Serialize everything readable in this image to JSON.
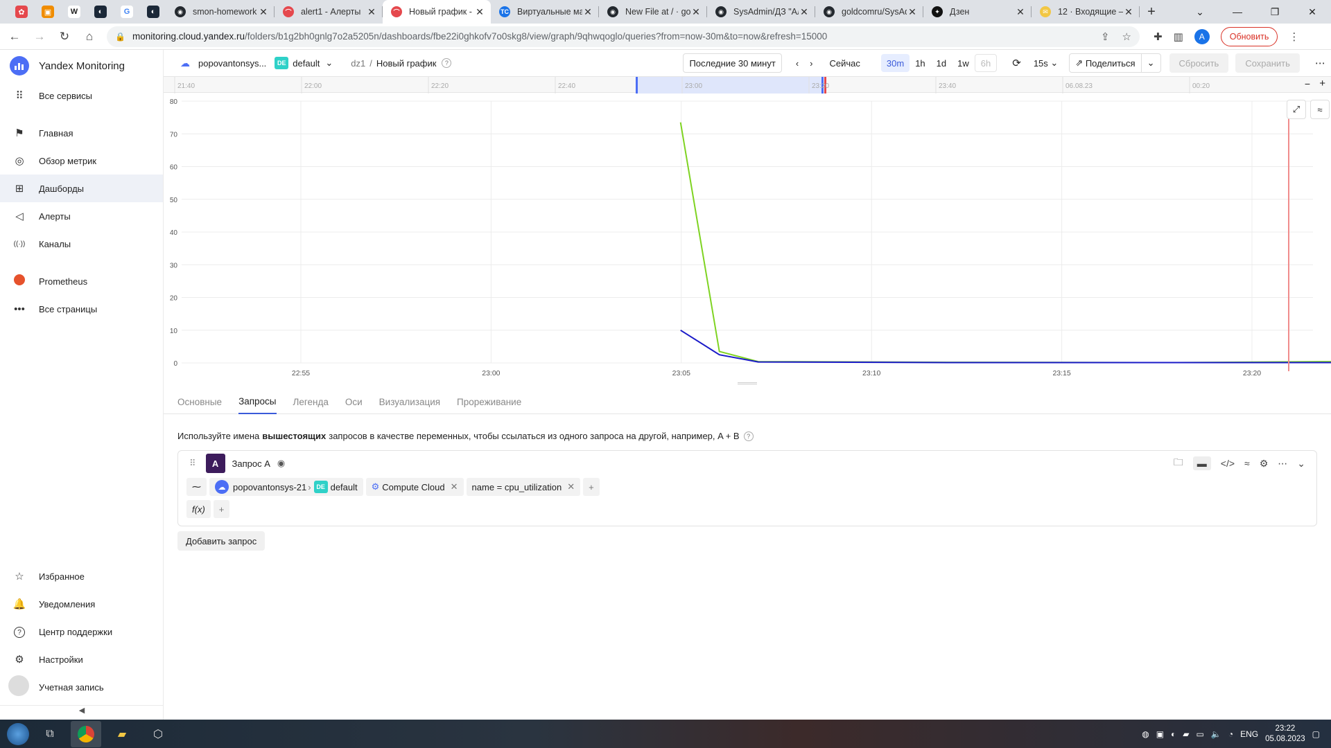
{
  "browser": {
    "tabs": [
      {
        "title": "smon-homework",
        "color": "#24292f",
        "glyph": "◉",
        "active": false
      },
      {
        "title": "alert1 - Алерты",
        "color": "#e5484d",
        "glyph": "⌒",
        "active": false
      },
      {
        "title": "Новый график -",
        "color": "#e5484d",
        "glyph": "⌒",
        "active": true
      },
      {
        "title": "Виртуальные ма",
        "color": "#1a73e8",
        "glyph": "TC",
        "active": false
      },
      {
        "title": "New File at / · go",
        "color": "#24292f",
        "glyph": "◉",
        "active": false
      },
      {
        "title": "SysAdmin/ДЗ \"Ал",
        "color": "#24292f",
        "glyph": "◉",
        "active": false
      },
      {
        "title": "goldcomru/SysAd",
        "color": "#24292f",
        "glyph": "◉",
        "active": false
      },
      {
        "title": "Дзен",
        "color": "#111111",
        "glyph": "✦",
        "active": false
      },
      {
        "title": "12 · Входящие —",
        "color": "#f2c744",
        "glyph": "✉",
        "active": false
      }
    ],
    "url_host": "monitoring.cloud.yandex.ru",
    "url_path": "/folders/b1g2bh0gnlg7o2a5205n/dashboards/fbe22i0ghkofv7o0skg8/view/graph/9qhwqoglo/queries?from=now-30m&to=now&refresh=15000",
    "avatar_letter": "A",
    "update_label": "Обновить"
  },
  "sidebar": {
    "brand": "Yandex Monitoring",
    "all_services": "Все сервисы",
    "items": [
      {
        "label": "Главная",
        "icon": "flag-icon"
      },
      {
        "label": "Обзор метрик",
        "icon": "compass-icon"
      },
      {
        "label": "Дашборды",
        "icon": "grid-icon"
      },
      {
        "label": "Алерты",
        "icon": "megaphone-icon"
      },
      {
        "label": "Каналы",
        "icon": "broadcast-icon"
      }
    ],
    "prometheus": "Prometheus",
    "all_pages": "Все страницы",
    "bottom": [
      {
        "label": "Избранное",
        "icon": "star-icon"
      },
      {
        "label": "Уведомления",
        "icon": "bell-icon"
      },
      {
        "label": "Центр поддержки",
        "icon": "help-icon"
      },
      {
        "label": "Настройки",
        "icon": "gear-icon"
      },
      {
        "label": "Учетная запись",
        "icon": "account-icon"
      }
    ]
  },
  "header": {
    "cloud": "popovantonsys...",
    "folder_badge": "DE",
    "folder": "default",
    "dashboard": "dz1",
    "separator": "/",
    "graph": "Новый график",
    "range": "Последние 30 минут",
    "now": "Сейчас",
    "presets": [
      "30m",
      "1h",
      "1d",
      "1w",
      "6h"
    ],
    "refresh": "15s",
    "share": "Поделиться",
    "reset": "Сбросить",
    "save": "Сохранить"
  },
  "navigator": {
    "ticks": [
      "21:40",
      "22:00",
      "22:20",
      "22:40",
      "23:00",
      "23:20",
      "23:40",
      "06.08.23",
      "00:20"
    ]
  },
  "chart_data": {
    "type": "line",
    "x": [
      "22:55",
      "23:00",
      "23:05",
      "23:10",
      "23:15",
      "23:20"
    ],
    "xlabel": "",
    "ylabel": "",
    "ylim": [
      0,
      80
    ],
    "yticks": [
      0,
      10,
      20,
      30,
      40,
      50,
      60,
      70,
      80
    ],
    "series": [
      {
        "color": "#7ed321",
        "points": [
          [
            23.083,
            73.5
          ],
          [
            23.1,
            3.5
          ],
          [
            23.117,
            0.4
          ],
          [
            23.2,
            0.2
          ],
          [
            23.3,
            0.1
          ],
          [
            23.367,
            0.4
          ],
          [
            23.4,
            0.2
          ]
        ]
      },
      {
        "color": "#1a1ac8",
        "points": [
          [
            23.083,
            10
          ],
          [
            23.1,
            2.5
          ],
          [
            23.117,
            0.3
          ],
          [
            23.2,
            0.1
          ],
          [
            23.3,
            0.1
          ],
          [
            23.4,
            0.1
          ]
        ]
      }
    ],
    "grid": true
  },
  "tabs": [
    "Основные",
    "Запросы",
    "Легенда",
    "Оси",
    "Визуализация",
    "Прореживание"
  ],
  "hint": {
    "before": "Используйте имена",
    "bold": "вышестоящих",
    "after": "запросов в качестве переменных, чтобы ссылаться из одного запроса на другой, например, A  +  B",
    "q": "?"
  },
  "query": {
    "letter": "A",
    "name": "Запрос A",
    "cloud": "popovantonsys-21",
    "folder_badge": "DE",
    "folder": "default",
    "service": "Compute Cloud",
    "selector": "name = cpu_utilization",
    "fx": "f(x)"
  },
  "add_query": "Добавить запрос",
  "taskbar": {
    "lang": "ENG",
    "time": "23:22",
    "date": "05.08.2023"
  }
}
